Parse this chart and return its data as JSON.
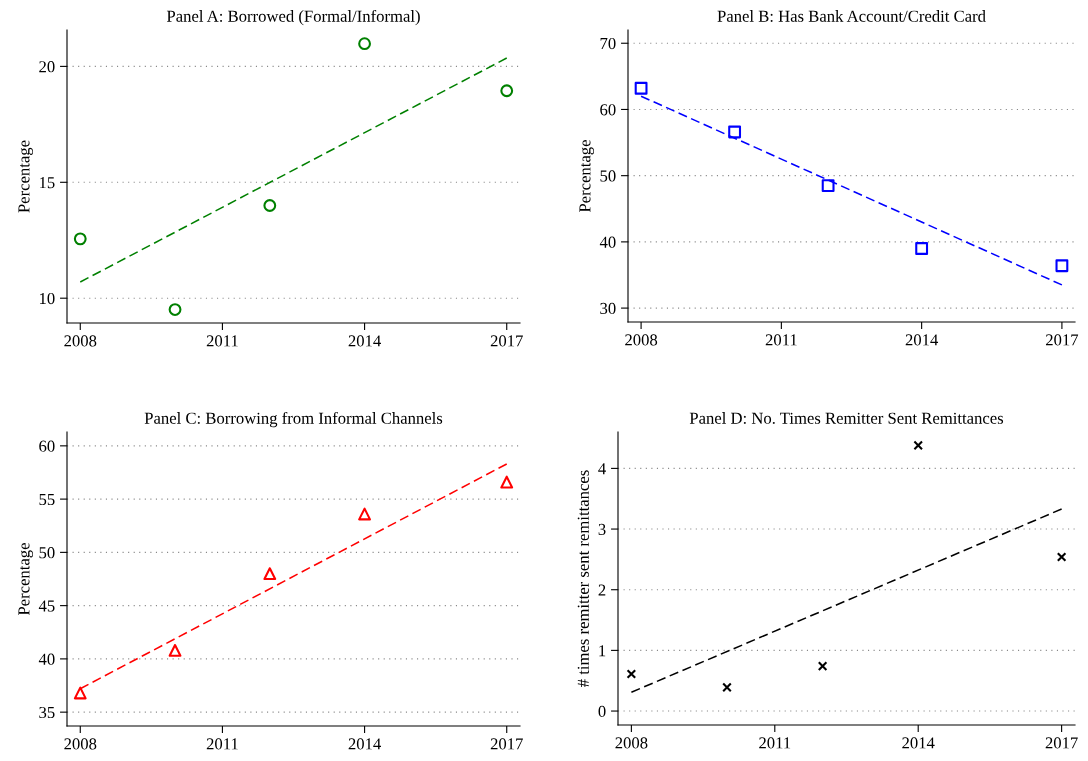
{
  "chart_data": [
    {
      "type": "scatter",
      "title": "Panel A: Borrowed (Formal/Informal)",
      "ylabel": "Percentage",
      "xlim": [
        2007.72,
        2017.28
      ],
      "xticks": [
        2008,
        2011,
        2014,
        2017
      ],
      "ylim": [
        8.93,
        21.57
      ],
      "yticks": [
        10,
        15,
        20
      ],
      "grid": "y",
      "legend": false,
      "series": [
        {
          "marker": "circle",
          "color": "#008000",
          "x": [
            2008,
            2010,
            2012,
            2014,
            2017
          ],
          "values": [
            12.56,
            9.51,
            14.0,
            20.98,
            18.95
          ]
        },
        {
          "type": "line",
          "line_style": "dashed",
          "marker": "none",
          "color": "#008000",
          "x": [
            2008,
            2017
          ],
          "values": [
            10.7,
            20.36
          ]
        }
      ]
    },
    {
      "type": "scatter",
      "title": "Panel B: Has Bank Account/Credit Card",
      "ylabel": "Percentage",
      "xlim": [
        2007.72,
        2017.28
      ],
      "xticks": [
        2008,
        2011,
        2014,
        2017
      ],
      "ylim": [
        27.9,
        72.0
      ],
      "yticks": [
        30,
        40,
        50,
        60,
        70
      ],
      "grid": "y",
      "legend": false,
      "series": [
        {
          "marker": "square",
          "color": "#0000ff",
          "x": [
            2008,
            2010,
            2012,
            2014,
            2017
          ],
          "values": [
            63.2,
            56.6,
            48.5,
            39.0,
            36.4
          ]
        },
        {
          "type": "line",
          "line_style": "dashed",
          "marker": "none",
          "color": "#0000ff",
          "x": [
            2008,
            2017
          ],
          "values": [
            62.0,
            33.5
          ]
        }
      ]
    },
    {
      "type": "scatter",
      "title": "Panel C: Borrowing from Informal Channels",
      "ylabel": "Percentage",
      "xlim": [
        2007.72,
        2017.28
      ],
      "xticks": [
        2008,
        2011,
        2014,
        2017
      ],
      "ylim": [
        33.7,
        61.3
      ],
      "yticks": [
        35,
        40,
        45,
        50,
        55,
        60
      ],
      "grid": "y",
      "legend": false,
      "series": [
        {
          "marker": "triangle",
          "color": "#ff0000",
          "x": [
            2008,
            2010,
            2012,
            2014,
            2017
          ],
          "values": [
            36.8,
            40.8,
            48.0,
            53.6,
            56.6
          ]
        },
        {
          "type": "line",
          "line_style": "dashed",
          "marker": "none",
          "color": "#ff0000",
          "x": [
            2008,
            2017
          ],
          "values": [
            37.2,
            58.3
          ]
        }
      ]
    },
    {
      "type": "scatter",
      "title": "Panel D: No. Times Remitter Sent Remittances",
      "ylabel": "# times remitter sent remittances",
      "xlim": [
        2007.72,
        2017.28
      ],
      "xticks": [
        2008,
        2011,
        2014,
        2017
      ],
      "ylim": [
        -0.23,
        4.6
      ],
      "yticks": [
        0,
        1,
        2,
        3,
        4
      ],
      "grid": "y",
      "legend": false,
      "series": [
        {
          "marker": "cross",
          "color": "#000000",
          "x": [
            2008,
            2010,
            2012,
            2014,
            2017
          ],
          "values": [
            0.61,
            0.39,
            0.74,
            4.38,
            2.54
          ]
        },
        {
          "type": "line",
          "line_style": "dashed",
          "marker": "none",
          "color": "#000000",
          "x": [
            2008,
            2017
          ],
          "values": [
            0.31,
            3.33
          ]
        }
      ]
    }
  ]
}
